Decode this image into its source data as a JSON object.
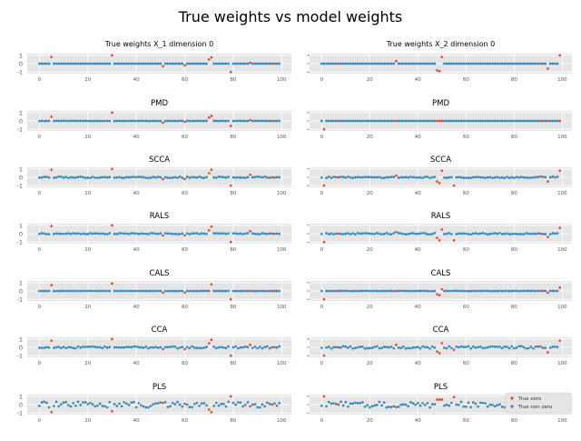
{
  "figure": {
    "title": "True weights vs model weights"
  },
  "colors": {
    "zero": "#E24A33",
    "nonzero": "#348ABD",
    "panel_bg": "#E5E5E5",
    "grid": "#FFFFFF",
    "tick": "#555555"
  },
  "legend": {
    "placement": "lower-right",
    "entries": [
      "True zero",
      "True non zero"
    ]
  },
  "chart_data": {
    "type": "scatter",
    "grid": true,
    "xlim": [
      -5,
      104
    ],
    "ylim": [
      -1.2,
      1.2
    ],
    "xticks": [
      0,
      20,
      40,
      60,
      80,
      100
    ],
    "yticks": [
      1,
      0,
      -1
    ],
    "row_titles": [
      "PMD",
      "SCCA",
      "RALS",
      "CALS",
      "CCA",
      "PLS"
    ],
    "col_titles": [
      "True weights X_1 dimension 0",
      "True weights X_2 dimension 0"
    ],
    "col1": {
      "true": {
        "special_x": [
          5,
          30,
          51,
          60,
          70,
          71,
          79,
          87,
          96
        ],
        "special_y": [
          0.8,
          1,
          -0.3,
          -0.2,
          0.5,
          0.75,
          -1,
          0.1,
          0
        ],
        "noise": 0
      },
      "PMD": {
        "special_x": [
          5,
          30,
          51,
          60,
          70,
          71,
          79,
          87,
          96
        ],
        "special_y": [
          0.5,
          1,
          -0.2,
          -0.1,
          0.4,
          0.6,
          -0.6,
          0.1,
          0
        ],
        "noise": 0.02
      },
      "SCCA": {
        "special_x": [
          5,
          30,
          51,
          60,
          70,
          71,
          79,
          87,
          96
        ],
        "special_y": [
          0.9,
          1,
          -0.2,
          -0.2,
          0.5,
          0.9,
          -1,
          0.3,
          0
        ],
        "noise": 0.08
      },
      "RALS": {
        "special_x": [
          5,
          30,
          51,
          60,
          70,
          71,
          79,
          87,
          96
        ],
        "special_y": [
          0.9,
          1,
          -0.2,
          -0.2,
          0.4,
          0.85,
          -1,
          0.3,
          0
        ],
        "noise": 0.06
      },
      "CALS": {
        "special_x": [
          5,
          30,
          51,
          60,
          70,
          71,
          79,
          87,
          96
        ],
        "special_y": [
          0.7,
          0.9,
          -0.2,
          -0.2,
          0,
          0.8,
          -1,
          0,
          0
        ],
        "noise": 0.01
      },
      "CCA": {
        "special_x": [
          5,
          30,
          51,
          60,
          70,
          71,
          79,
          87,
          96
        ],
        "special_y": [
          0.8,
          1,
          -0.2,
          -0.2,
          0.5,
          0.9,
          -1,
          0.3,
          0
        ],
        "noise": 0.12
      },
      "PLS": {
        "special_x": [
          5,
          30,
          51,
          60,
          70,
          71,
          79,
          87,
          96
        ],
        "special_y": [
          -0.9,
          -0.8,
          0.2,
          0.1,
          -0.6,
          -0.9,
          1,
          -0.2,
          0
        ],
        "noise": 0.35
      }
    },
    "col2": {
      "true": {
        "special_x": [
          7,
          31,
          48,
          49,
          50,
          91,
          94,
          99
        ],
        "special_y": [
          0,
          0.3,
          -0.8,
          -0.9,
          0.8,
          0,
          -0.6,
          1
        ],
        "noise": 0
      },
      "PMD": {
        "special_x": [
          1,
          7,
          31,
          48,
          49,
          50,
          91,
          94,
          99
        ],
        "special_y": [
          -1,
          0,
          0,
          0,
          0,
          0,
          0,
          0,
          0
        ],
        "noise": 0
      },
      "SCCA": {
        "special_x": [
          1,
          7,
          31,
          48,
          49,
          50,
          55,
          91,
          94,
          99
        ],
        "special_y": [
          -1,
          0,
          0.2,
          -0.5,
          -0.7,
          0.8,
          -1,
          0.1,
          -0.5,
          0.8
        ],
        "noise": 0.08
      },
      "RALS": {
        "special_x": [
          1,
          7,
          31,
          48,
          49,
          50,
          55,
          91,
          94,
          99
        ],
        "special_y": [
          -1,
          0,
          0.2,
          -0.5,
          -0.8,
          0.5,
          -0.8,
          0,
          -0.4,
          0.7
        ],
        "noise": 0.08
      },
      "CALS": {
        "special_x": [
          1,
          7,
          31,
          48,
          49,
          50,
          91,
          94,
          99
        ],
        "special_y": [
          -1,
          0,
          0,
          -0.4,
          -0.5,
          0.2,
          0,
          -0.2,
          0.4
        ],
        "noise": 0.02
      },
      "CCA": {
        "special_x": [
          1,
          7,
          31,
          48,
          49,
          50,
          55,
          91,
          94,
          99
        ],
        "special_y": [
          -1,
          0,
          0.3,
          -0.5,
          -0.7,
          0.5,
          -0.3,
          0.1,
          -0.6,
          0.8
        ],
        "noise": 0.15
      },
      "PLS": {
        "special_x": [
          1,
          7,
          31,
          48,
          49,
          50,
          55,
          91,
          94,
          99
        ],
        "special_y": [
          1,
          0,
          -0.3,
          0.6,
          0.6,
          0.6,
          0.9,
          -0.2,
          0.4,
          -0.7
        ],
        "noise": 0.35
      }
    }
  }
}
